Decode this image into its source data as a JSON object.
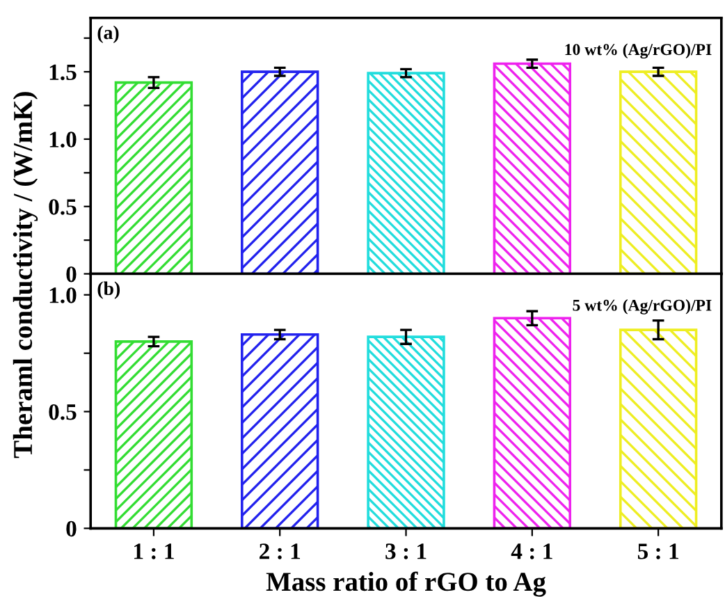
{
  "chart_data": [
    {
      "type": "bar",
      "values": [
        1.42,
        1.5,
        1.49,
        1.56,
        1.5
      ],
      "errors": [
        0.04,
        0.03,
        0.03,
        0.03,
        0.03
      ],
      "colors": [
        "#33dd33",
        "#2222ee",
        "#22dddd",
        "#ee22ee",
        "#eeee22"
      ],
      "ylim": [
        0,
        1.9
      ],
      "yticks": [
        0,
        {
          "value": 0.25,
          "label": null
        },
        0.5,
        {
          "value": 0.75,
          "label": null
        },
        {
          "value": 1.0,
          "label": "1.0"
        },
        {
          "value": 1.25,
          "label": null
        },
        1.5,
        {
          "value": 1.75,
          "label": null
        }
      ],
      "annotations": [
        "(a)",
        "10 wt% (Ag/rGO)/PI"
      ],
      "ylabel": "Theraml conductivity / (W/mK)",
      "grid": false,
      "legend": false
    },
    {
      "type": "bar",
      "categories": [
        "1 : 1",
        "2 : 1",
        "3 : 1",
        "4 : 1",
        "5 : 1"
      ],
      "values": [
        0.8,
        0.83,
        0.82,
        0.9,
        0.85
      ],
      "errors": [
        0.02,
        0.02,
        0.03,
        0.03,
        0.04
      ],
      "colors": [
        "#33dd33",
        "#2222ee",
        "#22dddd",
        "#ee22ee",
        "#eeee22"
      ],
      "ylim": [
        0,
        1.09
      ],
      "yticks": [
        0,
        {
          "value": 0.25,
          "label": null
        },
        0.5,
        {
          "value": 0.75,
          "label": null
        },
        {
          "value": 1.0,
          "label": "1.0"
        }
      ],
      "annotations": [
        "(b)",
        "5 wt% (Ag/rGO)/PI"
      ],
      "xlabel": "Mass ratio of rGO to Ag",
      "grid": false,
      "legend": false
    }
  ]
}
